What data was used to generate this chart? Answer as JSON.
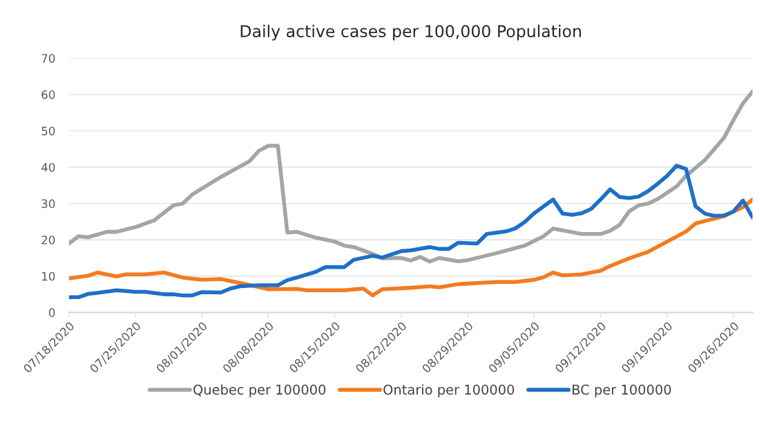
{
  "chart_data": {
    "type": "line",
    "title": "Daily active cases per 100,000 Population",
    "series": [
      {
        "name": "Quebec per 100000",
        "color": "#a5a5a5",
        "x": [
          "2020-07-18",
          "2020-07-19",
          "2020-07-20",
          "2020-07-22",
          "2020-07-23",
          "2020-07-25",
          "2020-07-27",
          "2020-07-29",
          "2020-07-30",
          "2020-07-31",
          "2020-08-03",
          "2020-08-06",
          "2020-08-07",
          "2020-08-08",
          "2020-08-09",
          "2020-08-10",
          "2020-08-11",
          "2020-08-13",
          "2020-08-15",
          "2020-08-16",
          "2020-08-17",
          "2020-08-19",
          "2020-08-20",
          "2020-08-22",
          "2020-08-23",
          "2020-08-24",
          "2020-08-25",
          "2020-08-26",
          "2020-08-28",
          "2020-08-29",
          "2020-09-01",
          "2020-09-03",
          "2020-09-04",
          "2020-09-06",
          "2020-09-07",
          "2020-09-08",
          "2020-09-10",
          "2020-09-12",
          "2020-09-13",
          "2020-09-14",
          "2020-09-15",
          "2020-09-16",
          "2020-09-17",
          "2020-09-18",
          "2020-09-20",
          "2020-09-21",
          "2020-09-23",
          "2020-09-25",
          "2020-09-26",
          "2020-09-27",
          "2020-09-28"
        ],
        "values": [
          19.0,
          21.0,
          20.7,
          22.2,
          22.2,
          23.5,
          25.4,
          29.5,
          30.0,
          32.5,
          37.3,
          41.6,
          44.5,
          45.9,
          45.9,
          22.0,
          22.2,
          20.6,
          19.5,
          18.4,
          18.0,
          16.1,
          14.9,
          15.0,
          14.3,
          15.3,
          14.0,
          15.0,
          14.1,
          14.4,
          16.3,
          17.7,
          18.4,
          21.0,
          23.1,
          22.6,
          21.6,
          21.6,
          22.5,
          24.1,
          27.8,
          29.5,
          30.0,
          31.2,
          34.7,
          37.6,
          42.0,
          48.1,
          53.0,
          57.6,
          60.8
        ]
      },
      {
        "name": "Ontario per 100000",
        "color": "#f47b20",
        "x": [
          "2020-07-18",
          "2020-07-20",
          "2020-07-21",
          "2020-07-23",
          "2020-07-24",
          "2020-07-26",
          "2020-07-28",
          "2020-07-30",
          "2020-08-01",
          "2020-08-03",
          "2020-08-06",
          "2020-08-08",
          "2020-08-11",
          "2020-08-12",
          "2020-08-16",
          "2020-08-18",
          "2020-08-19",
          "2020-08-20",
          "2020-08-23",
          "2020-08-25",
          "2020-08-26",
          "2020-08-28",
          "2020-09-01",
          "2020-09-03",
          "2020-09-05",
          "2020-09-06",
          "2020-09-07",
          "2020-09-08",
          "2020-09-10",
          "2020-09-12",
          "2020-09-13",
          "2020-09-15",
          "2020-09-17",
          "2020-09-19",
          "2020-09-21",
          "2020-09-22",
          "2020-09-23",
          "2020-09-25",
          "2020-09-26",
          "2020-09-27",
          "2020-09-28"
        ],
        "values": [
          9.4,
          10.1,
          11.0,
          9.9,
          10.5,
          10.5,
          11.0,
          9.6,
          9.0,
          9.2,
          7.6,
          6.4,
          6.5,
          6.1,
          6.1,
          6.6,
          4.7,
          6.4,
          6.8,
          7.2,
          6.9,
          7.8,
          8.4,
          8.4,
          9.0,
          9.7,
          11.0,
          10.2,
          10.5,
          11.5,
          12.8,
          14.9,
          16.7,
          19.5,
          22.3,
          24.5,
          25.2,
          26.5,
          27.8,
          29.0,
          31.1
        ]
      },
      {
        "name": "BC per 100000",
        "color": "#1f6fc8",
        "x": [
          "2020-07-18",
          "2020-07-19",
          "2020-07-20",
          "2020-07-21",
          "2020-07-23",
          "2020-07-25",
          "2020-07-26",
          "2020-07-28",
          "2020-07-29",
          "2020-07-30",
          "2020-07-31",
          "2020-08-01",
          "2020-08-03",
          "2020-08-04",
          "2020-08-05",
          "2020-08-07",
          "2020-08-09",
          "2020-08-10",
          "2020-08-11",
          "2020-08-13",
          "2020-08-14",
          "2020-08-16",
          "2020-08-17",
          "2020-08-19",
          "2020-08-20",
          "2020-08-22",
          "2020-08-23",
          "2020-08-25",
          "2020-08-26",
          "2020-08-27",
          "2020-08-28",
          "2020-08-30",
          "2020-08-31",
          "2020-09-02",
          "2020-09-03",
          "2020-09-04",
          "2020-09-05",
          "2020-09-07",
          "2020-09-08",
          "2020-09-09",
          "2020-09-10",
          "2020-09-11",
          "2020-09-12",
          "2020-09-13",
          "2020-09-14",
          "2020-09-15",
          "2020-09-16",
          "2020-09-17",
          "2020-09-18",
          "2020-09-19",
          "2020-09-20",
          "2020-09-21",
          "2020-09-22",
          "2020-09-23",
          "2020-09-24",
          "2020-09-25",
          "2020-09-26",
          "2020-09-27",
          "2020-09-28"
        ],
        "values": [
          4.2,
          4.2,
          5.1,
          5.4,
          6.1,
          5.7,
          5.7,
          5.0,
          5.0,
          4.7,
          4.7,
          5.6,
          5.5,
          6.6,
          7.2,
          7.5,
          7.5,
          8.9,
          9.6,
          11.2,
          12.5,
          12.5,
          14.5,
          15.6,
          15.1,
          16.9,
          17.1,
          18.0,
          17.5,
          17.5,
          19.2,
          19.0,
          21.6,
          22.3,
          23.1,
          24.9,
          27.3,
          31.1,
          27.2,
          26.9,
          27.3,
          28.5,
          31.1,
          33.9,
          31.8,
          31.5,
          31.9,
          33.4,
          35.4,
          37.6,
          40.4,
          39.5,
          29.2,
          27.2,
          26.6,
          26.7,
          27.8,
          30.8,
          26.2
        ]
      }
    ],
    "xlim": [
      "2020-07-18",
      "2020-09-28"
    ],
    "xticks": [
      {
        "value": "2020-07-18",
        "label": "07/18/2020"
      },
      {
        "value": "2020-07-25",
        "label": "07/25/2020"
      },
      {
        "value": "2020-08-01",
        "label": "08/01/2020"
      },
      {
        "value": "2020-08-08",
        "label": "08/08/2020"
      },
      {
        "value": "2020-08-15",
        "label": "08/15/2020"
      },
      {
        "value": "2020-08-22",
        "label": "08/22/2020"
      },
      {
        "value": "2020-08-29",
        "label": "08/29/2020"
      },
      {
        "value": "2020-09-05",
        "label": "09/05/2020"
      },
      {
        "value": "2020-09-12",
        "label": "09/12/2020"
      },
      {
        "value": "2020-09-19",
        "label": "09/19/2020"
      },
      {
        "value": "2020-09-26",
        "label": "09/26/2020"
      }
    ],
    "ylim": [
      0,
      70
    ],
    "yticks": [
      0,
      10,
      20,
      30,
      40,
      50,
      60,
      70
    ],
    "grid": "y",
    "legend": "bottom",
    "marker": "none",
    "line_style": "solid"
  }
}
